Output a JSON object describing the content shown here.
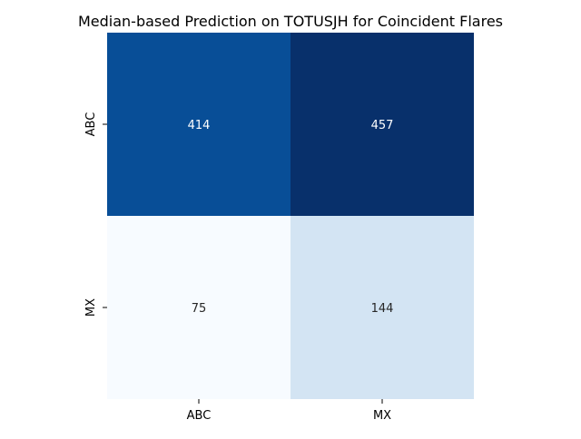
{
  "chart_data": {
    "type": "heatmap",
    "title": "Median-based Prediction on TOTUSJH for Coincident Flares",
    "xlabel": "",
    "ylabel": "",
    "x_categories": [
      "ABC",
      "MX"
    ],
    "y_categories": [
      "ABC",
      "MX"
    ],
    "values": [
      [
        414,
        457
      ],
      [
        75,
        144
      ]
    ],
    "colormap": "Blues",
    "value_range": [
      75,
      457
    ],
    "colorbar": false,
    "grid": false,
    "legend": "none",
    "colors": {
      "low": "#f7fbff",
      "high": "#08306b",
      "annotation_on_dark": "#ffffff",
      "annotation_on_light": "#262626",
      "axis_text": "#000000"
    }
  }
}
